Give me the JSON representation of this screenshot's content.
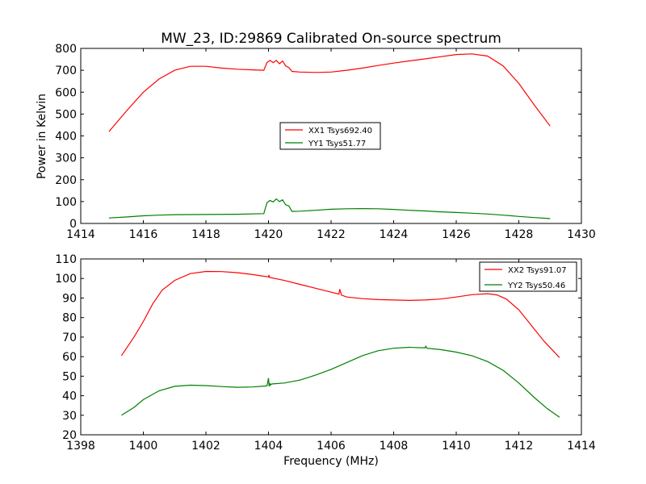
{
  "chart_data": [
    {
      "type": "line",
      "title": "MW_23, ID:29869 Calibrated On-source spectrum",
      "xlabel": "",
      "ylabel": "Power in Kelvin",
      "xlim": [
        1414,
        1430
      ],
      "ylim": [
        0,
        800
      ],
      "xticks": [
        "1414",
        "1416",
        "1418",
        "1420",
        "1422",
        "1424",
        "1426",
        "1428",
        "1430"
      ],
      "yticks": [
        "0",
        "100",
        "200",
        "300",
        "400",
        "500",
        "600",
        "700",
        "800"
      ],
      "legend_position": "center",
      "grid": false,
      "series": [
        {
          "name": "XX1 Tsys692.40",
          "color": "#ff0000",
          "points": [
            [
              1414.9,
              420
            ],
            [
              1415.5,
              520
            ],
            [
              1416.0,
              600
            ],
            [
              1416.5,
              660
            ],
            [
              1417.0,
              700
            ],
            [
              1417.5,
              718
            ],
            [
              1418.0,
              718
            ],
            [
              1418.5,
              710
            ],
            [
              1419.0,
              705
            ],
            [
              1419.5,
              702
            ],
            [
              1419.85,
              700
            ],
            [
              1419.95,
              735
            ],
            [
              1420.05,
              745
            ],
            [
              1420.15,
              735
            ],
            [
              1420.25,
              745
            ],
            [
              1420.35,
              730
            ],
            [
              1420.45,
              742
            ],
            [
              1420.55,
              720
            ],
            [
              1420.65,
              712
            ],
            [
              1420.75,
              695
            ],
            [
              1421.0,
              692
            ],
            [
              1421.5,
              690
            ],
            [
              1422.0,
              692
            ],
            [
              1422.5,
              700
            ],
            [
              1423.0,
              710
            ],
            [
              1423.5,
              722
            ],
            [
              1424.0,
              733
            ],
            [
              1424.5,
              743
            ],
            [
              1425.0,
              752
            ],
            [
              1425.5,
              762
            ],
            [
              1426.0,
              772
            ],
            [
              1426.5,
              775
            ],
            [
              1427.0,
              765
            ],
            [
              1427.5,
              720
            ],
            [
              1428.0,
              640
            ],
            [
              1428.5,
              540
            ],
            [
              1429.0,
              445
            ]
          ]
        },
        {
          "name": "YY1 Tsys51.77",
          "color": "#008000",
          "points": [
            [
              1414.9,
              25
            ],
            [
              1415.5,
              30
            ],
            [
              1416.0,
              35
            ],
            [
              1416.5,
              38
            ],
            [
              1417.0,
              40
            ],
            [
              1418.0,
              41
            ],
            [
              1419.0,
              42
            ],
            [
              1419.85,
              45
            ],
            [
              1419.95,
              95
            ],
            [
              1420.05,
              105
            ],
            [
              1420.15,
              98
            ],
            [
              1420.25,
              112
            ],
            [
              1420.35,
              100
            ],
            [
              1420.45,
              108
            ],
            [
              1420.55,
              85
            ],
            [
              1420.65,
              80
            ],
            [
              1420.75,
              55
            ],
            [
              1421.0,
              56
            ],
            [
              1421.5,
              60
            ],
            [
              1422.0,
              65
            ],
            [
              1422.5,
              67
            ],
            [
              1423.0,
              68
            ],
            [
              1423.5,
              67
            ],
            [
              1424.0,
              64
            ],
            [
              1424.5,
              60
            ],
            [
              1425.0,
              57
            ],
            [
              1425.5,
              53
            ],
            [
              1426.0,
              50
            ],
            [
              1426.5,
              47
            ],
            [
              1427.0,
              43
            ],
            [
              1427.5,
              38
            ],
            [
              1428.0,
              32
            ],
            [
              1428.5,
              27
            ],
            [
              1429.0,
              22
            ]
          ]
        }
      ]
    },
    {
      "type": "line",
      "title": "",
      "xlabel": "Frequency (MHz)",
      "ylabel": "",
      "xlim": [
        1398,
        1414
      ],
      "ylim": [
        20,
        110
      ],
      "xticks": [
        "1398",
        "1400",
        "1402",
        "1404",
        "1406",
        "1408",
        "1410",
        "1412",
        "1414"
      ],
      "yticks": [
        "20",
        "30",
        "40",
        "50",
        "60",
        "70",
        "80",
        "90",
        "100",
        "110"
      ],
      "legend_position": "upper right",
      "grid": false,
      "series": [
        {
          "name": "XX2 Tsys91.07",
          "color": "#ff0000",
          "points": [
            [
              1399.3,
              60.5
            ],
            [
              1399.7,
              70
            ],
            [
              1400.0,
              78
            ],
            [
              1400.3,
              87
            ],
            [
              1400.6,
              94
            ],
            [
              1401.0,
              99
            ],
            [
              1401.5,
              102.5
            ],
            [
              1402.0,
              103.6
            ],
            [
              1402.5,
              103.5
            ],
            [
              1403.0,
              103
            ],
            [
              1403.5,
              102
            ],
            [
              1404.0,
              100.8
            ],
            [
              1404.01,
              101.8
            ],
            [
              1404.03,
              100.6
            ],
            [
              1404.5,
              99
            ],
            [
              1405.0,
              97
            ],
            [
              1405.5,
              95
            ],
            [
              1406.0,
              93
            ],
            [
              1406.25,
              92
            ],
            [
              1406.28,
              94.5
            ],
            [
              1406.33,
              91.5
            ],
            [
              1406.5,
              90.5
            ],
            [
              1407.0,
              89.7
            ],
            [
              1407.5,
              89.2
            ],
            [
              1408.0,
              89
            ],
            [
              1408.5,
              88.8
            ],
            [
              1409.0,
              89
            ],
            [
              1409.5,
              89.5
            ],
            [
              1410.0,
              90.5
            ],
            [
              1410.5,
              91.7
            ],
            [
              1411.0,
              92.2
            ],
            [
              1411.3,
              91.6
            ],
            [
              1411.6,
              89.5
            ],
            [
              1412.0,
              84
            ],
            [
              1412.4,
              76
            ],
            [
              1412.8,
              68
            ],
            [
              1413.3,
              59.5
            ]
          ]
        },
        {
          "name": "YY2 Tsys50.46",
          "color": "#008000",
          "points": [
            [
              1399.3,
              30
            ],
            [
              1399.7,
              34
            ],
            [
              1400.0,
              38
            ],
            [
              1400.5,
              42.5
            ],
            [
              1401.0,
              44.8
            ],
            [
              1401.5,
              45.4
            ],
            [
              1402.0,
              45.2
            ],
            [
              1402.5,
              44.7
            ],
            [
              1403.0,
              44.3
            ],
            [
              1403.5,
              44.5
            ],
            [
              1403.95,
              45
            ],
            [
              1404.0,
              49
            ],
            [
              1404.02,
              44.8
            ],
            [
              1404.04,
              46.5
            ],
            [
              1404.06,
              45.4
            ],
            [
              1404.1,
              46
            ],
            [
              1404.5,
              46.5
            ],
            [
              1405.0,
              48
            ],
            [
              1405.5,
              50.5
            ],
            [
              1406.0,
              53.5
            ],
            [
              1406.5,
              57
            ],
            [
              1407.0,
              60.5
            ],
            [
              1407.5,
              63
            ],
            [
              1408.0,
              64.3
            ],
            [
              1408.5,
              64.8
            ],
            [
              1409.0,
              64.5
            ],
            [
              1409.03,
              65.3
            ],
            [
              1409.06,
              64.3
            ],
            [
              1409.5,
              63.6
            ],
            [
              1410.0,
              62.3
            ],
            [
              1410.5,
              60.5
            ],
            [
              1411.0,
              57.5
            ],
            [
              1411.5,
              53
            ],
            [
              1412.0,
              46.5
            ],
            [
              1412.5,
              39
            ],
            [
              1412.9,
              33.5
            ],
            [
              1413.3,
              29
            ]
          ]
        }
      ]
    }
  ]
}
